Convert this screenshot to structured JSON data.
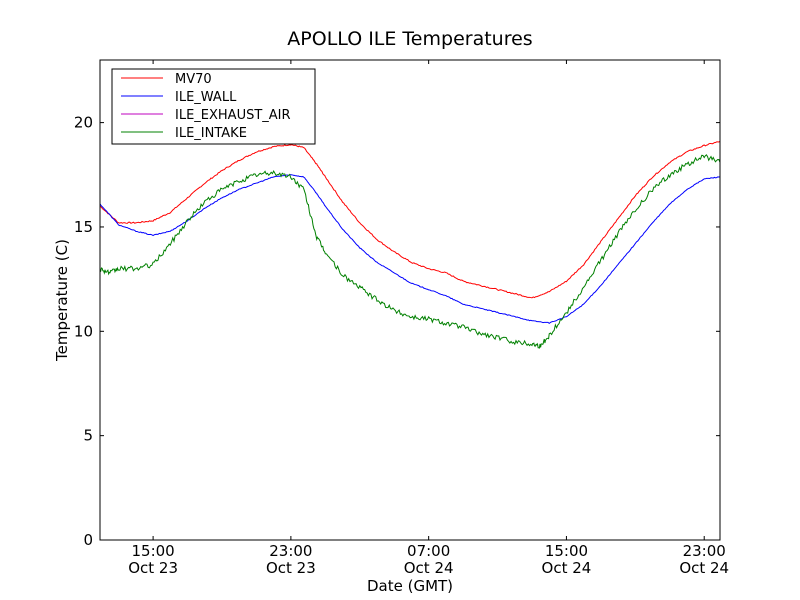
{
  "chart_data": {
    "type": "line",
    "title": "APOLLO ILE Temperatures",
    "xlabel": "Date (GMT)",
    "ylabel": "Temperature (C)",
    "xlim": [
      "2012-10-23T11:55",
      "2012-10-24T23:55"
    ],
    "ylim": [
      0,
      23
    ],
    "y_ticks": [
      0,
      5,
      10,
      15,
      20
    ],
    "x_ticks": [
      {
        "at": "2012-10-23T15:00",
        "time": "15:00",
        "date": "Oct 23"
      },
      {
        "at": "2012-10-23T23:00",
        "time": "23:00",
        "date": "Oct 23"
      },
      {
        "at": "2012-10-24T07:00",
        "time": "07:00",
        "date": "Oct 24"
      },
      {
        "at": "2012-10-24T15:00",
        "time": "15:00",
        "date": "Oct 24"
      },
      {
        "at": "2012-10-24T23:00",
        "time": "23:00",
        "date": "Oct 24"
      }
    ],
    "grid": false,
    "legend_position": "top-left",
    "series": [
      {
        "name": "MV70",
        "color": "#ff0000",
        "noise": 0.03,
        "x": [
          "2012-10-23T11:55",
          "2012-10-23T13:00",
          "2012-10-23T14:00",
          "2012-10-23T15:00",
          "2012-10-23T16:00",
          "2012-10-23T17:00",
          "2012-10-23T18:00",
          "2012-10-23T19:00",
          "2012-10-23T20:00",
          "2012-10-23T21:00",
          "2012-10-23T22:00",
          "2012-10-23T23:00",
          "2012-10-23T23:45",
          "2012-10-24T00:30",
          "2012-10-24T01:00",
          "2012-10-24T02:00",
          "2012-10-24T03:00",
          "2012-10-24T04:00",
          "2012-10-24T05:00",
          "2012-10-24T06:00",
          "2012-10-24T07:00",
          "2012-10-24T08:00",
          "2012-10-24T09:00",
          "2012-10-24T10:00",
          "2012-10-24T11:00",
          "2012-10-24T12:00",
          "2012-10-24T13:00",
          "2012-10-24T14:00",
          "2012-10-24T15:00",
          "2012-10-24T16:00",
          "2012-10-24T17:00",
          "2012-10-24T18:00",
          "2012-10-24T19:00",
          "2012-10-24T20:00",
          "2012-10-24T21:00",
          "2012-10-24T22:00",
          "2012-10-24T23:00",
          "2012-10-24T23:55"
        ],
        "y": [
          16.0,
          15.2,
          15.2,
          15.3,
          15.7,
          16.4,
          17.1,
          17.7,
          18.2,
          18.6,
          18.85,
          18.95,
          18.8,
          18.0,
          17.4,
          16.2,
          15.2,
          14.4,
          13.8,
          13.3,
          13.0,
          12.8,
          12.4,
          12.2,
          12.0,
          11.8,
          11.6,
          11.9,
          12.4,
          13.2,
          14.3,
          15.4,
          16.5,
          17.4,
          18.1,
          18.6,
          18.9,
          19.1
        ]
      },
      {
        "name": "ILE_WALL",
        "color": "#0000ff",
        "noise": 0.02,
        "x": [
          "2012-10-23T11:55",
          "2012-10-23T13:00",
          "2012-10-23T14:00",
          "2012-10-23T15:00",
          "2012-10-23T16:00",
          "2012-10-23T17:00",
          "2012-10-23T18:00",
          "2012-10-23T19:00",
          "2012-10-23T20:00",
          "2012-10-23T21:00",
          "2012-10-23T22:00",
          "2012-10-23T23:00",
          "2012-10-23T23:45",
          "2012-10-24T00:30",
          "2012-10-24T01:00",
          "2012-10-24T02:00",
          "2012-10-24T03:00",
          "2012-10-24T04:00",
          "2012-10-24T05:00",
          "2012-10-24T06:00",
          "2012-10-24T07:00",
          "2012-10-24T08:00",
          "2012-10-24T09:00",
          "2012-10-24T10:00",
          "2012-10-24T11:00",
          "2012-10-24T12:00",
          "2012-10-24T13:00",
          "2012-10-24T14:00",
          "2012-10-24T15:00",
          "2012-10-24T16:00",
          "2012-10-24T17:00",
          "2012-10-24T18:00",
          "2012-10-24T19:00",
          "2012-10-24T20:00",
          "2012-10-24T21:00",
          "2012-10-24T22:00",
          "2012-10-24T23:00",
          "2012-10-24T23:55"
        ],
        "y": [
          16.1,
          15.1,
          14.8,
          14.6,
          14.8,
          15.3,
          15.9,
          16.4,
          16.8,
          17.1,
          17.4,
          17.5,
          17.4,
          16.6,
          16.0,
          14.9,
          14.0,
          13.3,
          12.8,
          12.3,
          12.0,
          11.7,
          11.3,
          11.1,
          10.9,
          10.7,
          10.5,
          10.4,
          10.7,
          11.3,
          12.2,
          13.2,
          14.2,
          15.2,
          16.1,
          16.8,
          17.3,
          17.4
        ]
      },
      {
        "name": "ILE_EXHAUST_AIR",
        "color": "#bf00bf",
        "noise": 0,
        "x": [],
        "y": []
      },
      {
        "name": "ILE_INTAKE",
        "color": "#008000",
        "noise": 0.12,
        "x": [
          "2012-10-23T11:55",
          "2012-10-23T12:30",
          "2012-10-23T13:00",
          "2012-10-23T14:00",
          "2012-10-23T15:00",
          "2012-10-23T16:00",
          "2012-10-23T17:00",
          "2012-10-23T18:00",
          "2012-10-23T19:00",
          "2012-10-23T20:00",
          "2012-10-23T21:00",
          "2012-10-23T22:00",
          "2012-10-23T23:00",
          "2012-10-23T23:45",
          "2012-10-24T00:30",
          "2012-10-24T01:00",
          "2012-10-24T02:00",
          "2012-10-24T03:00",
          "2012-10-24T04:00",
          "2012-10-24T05:00",
          "2012-10-24T06:00",
          "2012-10-24T07:00",
          "2012-10-24T08:00",
          "2012-10-24T09:00",
          "2012-10-24T10:00",
          "2012-10-24T11:00",
          "2012-10-24T12:00",
          "2012-10-24T13:00",
          "2012-10-24T13:30",
          "2012-10-24T14:00",
          "2012-10-24T15:00",
          "2012-10-24T16:00",
          "2012-10-24T17:00",
          "2012-10-24T18:00",
          "2012-10-24T19:00",
          "2012-10-24T20:00",
          "2012-10-24T21:00",
          "2012-10-24T22:00",
          "2012-10-24T23:00",
          "2012-10-24T23:55"
        ],
        "y": [
          13.0,
          12.8,
          13.0,
          13.0,
          13.2,
          14.2,
          15.3,
          16.2,
          16.8,
          17.2,
          17.5,
          17.6,
          17.4,
          16.8,
          14.5,
          13.8,
          12.7,
          12.1,
          11.5,
          11.0,
          10.7,
          10.6,
          10.4,
          10.2,
          9.9,
          9.7,
          9.5,
          9.4,
          9.3,
          9.8,
          10.9,
          12.1,
          13.4,
          14.7,
          15.8,
          16.8,
          17.5,
          18.0,
          18.4,
          18.1
        ]
      }
    ]
  }
}
